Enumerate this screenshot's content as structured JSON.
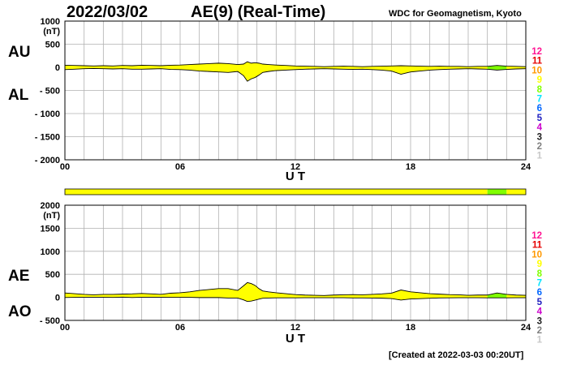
{
  "header": {
    "date": "2022/03/02",
    "title": "AE(9)  (Real-Time)",
    "source": "WDC for Geomagnetism, Kyoto"
  },
  "footer": {
    "created": "[Created at 2022-03-03 00:20UT]"
  },
  "station_count_scale": {
    "labels": [
      "12",
      "11",
      "10",
      "9",
      "8",
      "7",
      "6",
      "5",
      "4",
      "3",
      "2",
      "1"
    ],
    "colors": [
      "#ff1493",
      "#e60000",
      "#ff9900",
      "#ffff00",
      "#80ff00",
      "#00e5ff",
      "#0066ff",
      "#2020c0",
      "#cc00cc",
      "#202020",
      "#808080",
      "#c8c8c8"
    ]
  },
  "station_coverage": {
    "segments": [
      {
        "from": 0,
        "to": 22,
        "stations": "9",
        "color": "#ffff00"
      },
      {
        "from": 22,
        "to": 23,
        "stations": "8",
        "color": "#80ff00"
      },
      {
        "from": 23,
        "to": 24,
        "stations": "9",
        "color": "#ffff00"
      }
    ]
  },
  "chart_data": [
    {
      "type": "area",
      "panel": "AU/AL",
      "series_labels": [
        "AU",
        "AL"
      ],
      "unit": "(nT)",
      "xlabel": "U T",
      "xlim": [
        0,
        24
      ],
      "ylim": [
        -2000,
        1000
      ],
      "xticks": [
        0,
        6,
        12,
        18,
        24
      ],
      "xtick_labels": [
        "00",
        "06",
        "12",
        "18",
        "24"
      ],
      "yticks": [
        1000,
        500,
        0,
        -500,
        -1000,
        -1500,
        -2000
      ],
      "ytick_labels": [
        "1000",
        "500",
        "0",
        "- 500",
        "- 1000",
        "- 1500",
        "- 2000"
      ],
      "grid": true,
      "fill_color": "#ffff00",
      "x": [
        0,
        0.5,
        1,
        1.5,
        2,
        2.5,
        3,
        3.5,
        4,
        4.5,
        5,
        5.5,
        6,
        6.5,
        7,
        7.5,
        8,
        8.5,
        9,
        9.3,
        9.5,
        9.7,
        9.9,
        10.1,
        10.3,
        10.6,
        11,
        11.5,
        12,
        12.5,
        13,
        13.5,
        14,
        14.5,
        15,
        15.5,
        16,
        16.5,
        17,
        17.5,
        18,
        18.5,
        19,
        19.5,
        20,
        20.5,
        21,
        21.5,
        22,
        22.5,
        23,
        23.5,
        24
      ],
      "series": [
        {
          "name": "AU",
          "values": [
            45,
            40,
            35,
            30,
            35,
            30,
            40,
            35,
            45,
            40,
            35,
            45,
            50,
            60,
            70,
            80,
            90,
            80,
            60,
            70,
            120,
            90,
            100,
            90,
            70,
            60,
            50,
            40,
            30,
            25,
            20,
            15,
            20,
            25,
            20,
            15,
            20,
            25,
            30,
            35,
            30,
            25,
            20,
            25,
            20,
            20,
            15,
            20,
            20,
            40,
            25,
            20,
            15
          ]
        },
        {
          "name": "AL",
          "values": [
            -50,
            -40,
            -30,
            -25,
            -30,
            -35,
            -30,
            -40,
            -40,
            -35,
            -30,
            -45,
            -50,
            -60,
            -80,
            -90,
            -100,
            -110,
            -90,
            -180,
            -300,
            -250,
            -220,
            -170,
            -110,
            -90,
            -70,
            -60,
            -50,
            -40,
            -35,
            -30,
            -35,
            -40,
            -45,
            -40,
            -50,
            -60,
            -80,
            -150,
            -100,
            -80,
            -60,
            -50,
            -40,
            -35,
            -30,
            -35,
            -40,
            -60,
            -45,
            -35,
            -30
          ]
        }
      ]
    },
    {
      "type": "area",
      "panel": "AE/AO",
      "series_labels": [
        "AE",
        "AO"
      ],
      "unit": "(nT)",
      "xlabel": "U T",
      "xlim": [
        0,
        24
      ],
      "ylim": [
        -500,
        2000
      ],
      "xticks": [
        0,
        6,
        12,
        18,
        24
      ],
      "xtick_labels": [
        "00",
        "06",
        "12",
        "18",
        "24"
      ],
      "yticks": [
        2000,
        1500,
        1000,
        500,
        0,
        -500
      ],
      "ytick_labels": [
        "2000",
        "1500",
        "1000",
        "500",
        "0",
        "- 500"
      ],
      "grid": true,
      "fill_color": "#ffff00",
      "x": [
        0,
        0.5,
        1,
        1.5,
        2,
        2.5,
        3,
        3.5,
        4,
        4.5,
        5,
        5.5,
        6,
        6.5,
        7,
        7.5,
        8,
        8.5,
        9,
        9.3,
        9.5,
        9.7,
        9.9,
        10.1,
        10.3,
        10.6,
        11,
        11.5,
        12,
        12.5,
        13,
        13.5,
        14,
        14.5,
        15,
        15.5,
        16,
        16.5,
        17,
        17.5,
        18,
        18.5,
        19,
        19.5,
        20,
        20.5,
        21,
        21.5,
        22,
        22.5,
        23,
        23.5,
        24
      ],
      "series": [
        {
          "name": "AE",
          "values": [
            95,
            80,
            65,
            55,
            65,
            65,
            70,
            75,
            85,
            75,
            65,
            90,
            100,
            120,
            150,
            170,
            190,
            190,
            150,
            250,
            320,
            300,
            260,
            190,
            140,
            120,
            100,
            80,
            60,
            50,
            45,
            40,
            50,
            55,
            60,
            55,
            65,
            75,
            90,
            160,
            120,
            100,
            80,
            70,
            60,
            55,
            45,
            50,
            50,
            95,
            65,
            50,
            45
          ]
        },
        {
          "name": "AO",
          "values": [
            -3,
            0,
            2,
            3,
            2,
            -2,
            5,
            -3,
            2,
            3,
            2,
            0,
            0,
            0,
            -5,
            -5,
            -5,
            -15,
            -15,
            -55,
            -90,
            -80,
            -60,
            -40,
            -20,
            -15,
            -10,
            -10,
            -10,
            -8,
            -8,
            -8,
            -8,
            -8,
            -12,
            -12,
            -15,
            -18,
            -25,
            -58,
            -35,
            -28,
            -20,
            -12,
            -10,
            -8,
            -8,
            -8,
            -10,
            -10,
            -10,
            -8,
            -8
          ]
        }
      ]
    }
  ]
}
